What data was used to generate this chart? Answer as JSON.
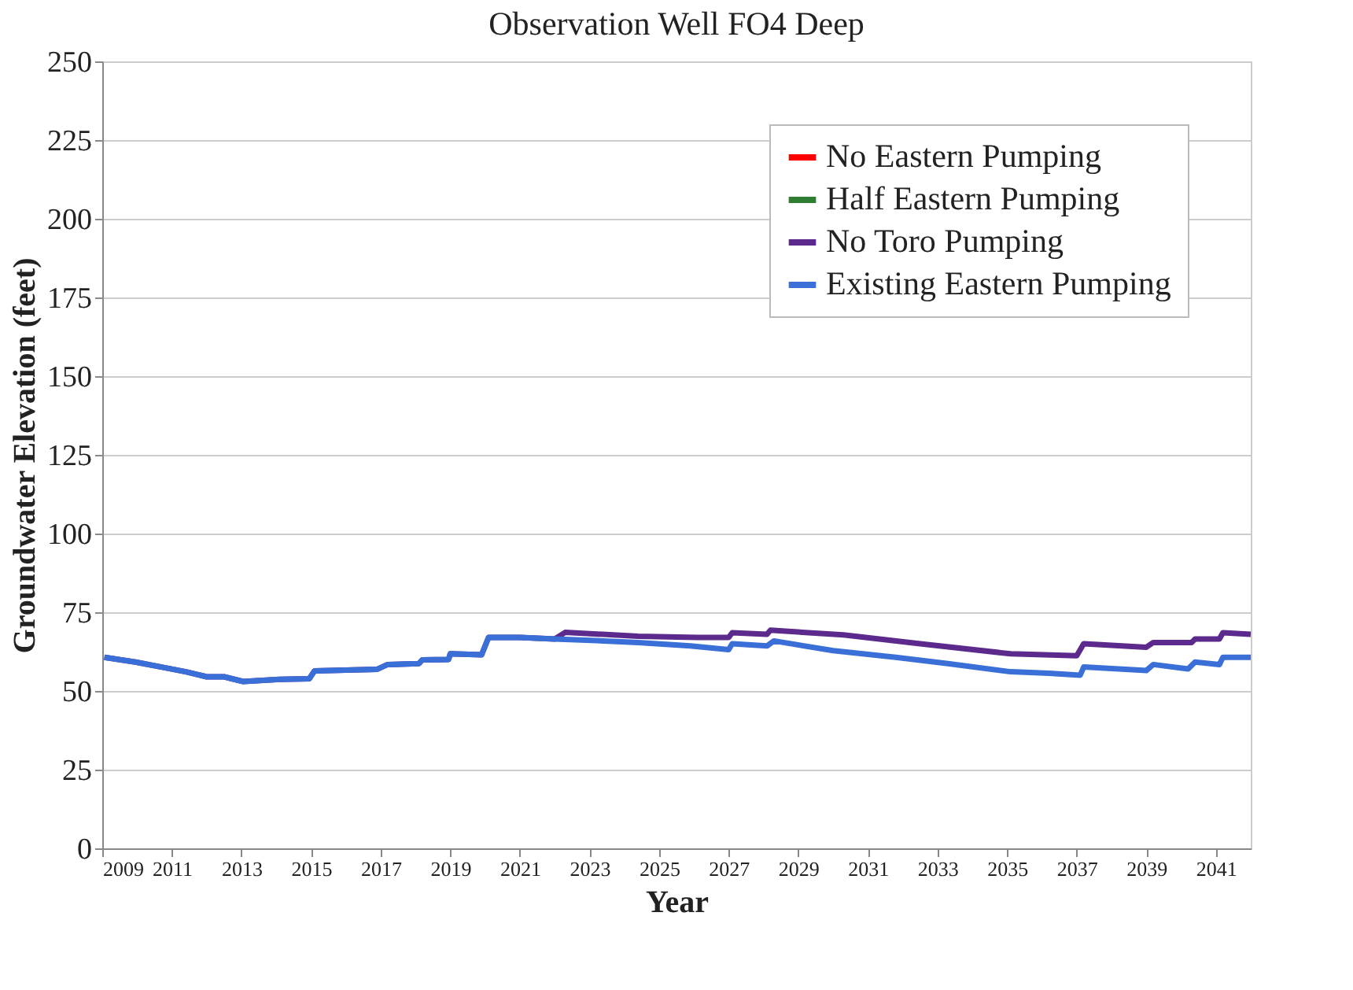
{
  "chart_data": {
    "type": "line",
    "title": "Observation Well FO4 Deep",
    "xlabel": "Year",
    "ylabel": "Groundwater Elevation (feet)",
    "xlim": [
      2009,
      2042
    ],
    "xticks": [
      2009,
      2011,
      2013,
      2015,
      2017,
      2019,
      2021,
      2023,
      2025,
      2027,
      2029,
      2031,
      2033,
      2035,
      2037,
      2039,
      2041
    ],
    "ylim": [
      0,
      250
    ],
    "yticks": [
      0,
      25,
      50,
      75,
      100,
      125,
      150,
      175,
      200,
      225,
      250
    ],
    "grid": "y",
    "legend": "top right",
    "marker": "none",
    "line_style": "solid",
    "series": [
      {
        "name": "No Eastern Pumping",
        "color": "#ff0000"
      },
      {
        "name": "Half Eastern Pumping",
        "color": "#2e7d32"
      },
      {
        "name": "No Toro Pumping",
        "color": "#5b2a8c",
        "x": [
          2009.06,
          2009.95,
          2010.7,
          2011.4,
          2012.0,
          2012.5,
          2013.05,
          2014.1,
          2014.95,
          2015.1,
          2016.9,
          2017.2,
          2018.1,
          2018.2,
          2018.95,
          2019.0,
          2019.9,
          2020.1,
          2021.0,
          2022.0,
          2022.3,
          2024.4,
          2026.1,
          2027.0,
          2027.1,
          2028.1,
          2028.2,
          2030.3,
          2032.5,
          2035.1,
          2037.0,
          2037.2,
          2039.0,
          2039.2,
          2040.3,
          2040.4,
          2041.1,
          2041.2,
          2042
        ],
        "values": [
          60.7,
          59.2,
          57.6,
          56.1,
          54.5,
          54.5,
          53.0,
          53.7,
          53.9,
          56.4,
          56.9,
          58.4,
          58.7,
          59.9,
          60.0,
          61.8,
          61.5,
          67.0,
          67.0,
          66.5,
          68.6,
          67.4,
          67.0,
          67.0,
          68.5,
          68.0,
          69.3,
          67.8,
          65.0,
          61.8,
          61.2,
          65.0,
          63.9,
          65.4,
          65.4,
          66.5,
          66.5,
          68.5,
          68.0
        ]
      },
      {
        "name": "Existing Eastern Pumping",
        "color": "#3a6fd8",
        "x": [
          2009.06,
          2009.95,
          2010.7,
          2011.4,
          2012.0,
          2012.5,
          2013.05,
          2014.1,
          2014.95,
          2015.1,
          2016.9,
          2017.2,
          2018.1,
          2018.2,
          2018.95,
          2019.0,
          2019.9,
          2020.1,
          2021.0,
          2022.0,
          2023.2,
          2024.4,
          2025.9,
          2027.0,
          2027.1,
          2028.1,
          2028.3,
          2030.0,
          2031.8,
          2033.3,
          2035.1,
          2036.2,
          2037.1,
          2037.2,
          2039.0,
          2039.2,
          2040.2,
          2040.4,
          2041.1,
          2041.2,
          2042
        ],
        "values": [
          60.7,
          59.2,
          57.6,
          56.1,
          54.5,
          54.5,
          53.0,
          53.7,
          53.9,
          56.4,
          56.9,
          58.4,
          58.7,
          59.9,
          60.0,
          61.8,
          61.5,
          67.0,
          67.0,
          66.5,
          66.0,
          65.4,
          64.3,
          63.1,
          65.0,
          64.3,
          65.9,
          62.8,
          60.7,
          58.7,
          56.1,
          55.6,
          55.0,
          57.6,
          56.5,
          58.4,
          57.0,
          59.2,
          58.4,
          60.7,
          60.7
        ]
      }
    ]
  }
}
